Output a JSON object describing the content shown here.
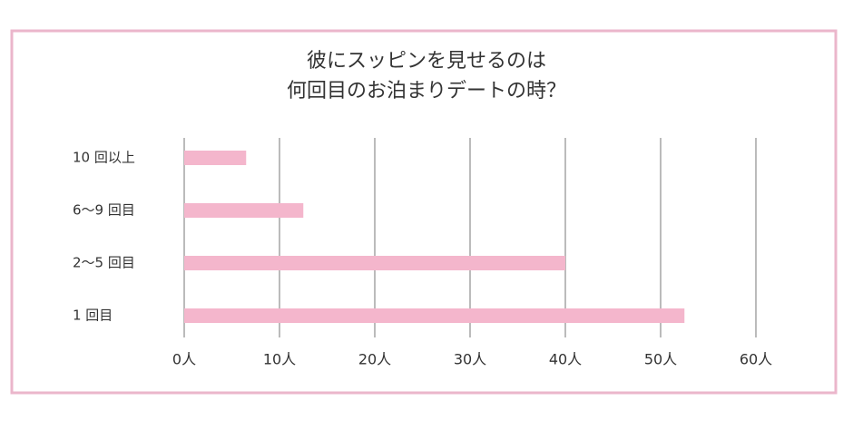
{
  "chart_data": {
    "type": "barh",
    "title": [
      "彼にスッピンを見せるのは",
      "何回目のお泊まりデートの時？"
    ],
    "categories": [
      "10 回以上",
      "6〜9 回目",
      "2〜5 回目",
      "1 回目"
    ],
    "values": [
      6.5,
      12.5,
      40,
      52.5
    ],
    "color": "#f4b6cc",
    "xlim": [
      0,
      60
    ],
    "xticks": [
      {
        "value": 0,
        "label": "0人"
      },
      {
        "value": 10,
        "label": "10人"
      },
      {
        "value": 20,
        "label": "20人"
      },
      {
        "value": 30,
        "label": "30人"
      },
      {
        "value": 40,
        "label": "40人"
      },
      {
        "value": 50,
        "label": "50人"
      },
      {
        "value": 60,
        "label": "60人"
      }
    ],
    "grid": true
  }
}
